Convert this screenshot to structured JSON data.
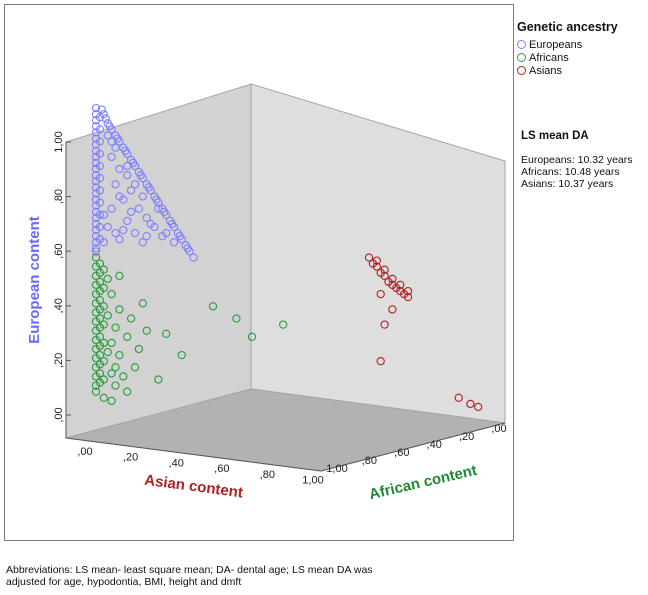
{
  "chart_data": {
    "type": "scatter",
    "subtype": "3d-ternary",
    "axes": {
      "y": {
        "label": "European content",
        "ticks": [
          ",00",
          ",20",
          ",40",
          ",60",
          ",80",
          "1,00"
        ],
        "range": [
          0,
          1
        ],
        "color": "#6a6aff"
      },
      "x": {
        "label": "Asian content",
        "ticks": [
          ",00",
          ",20",
          ",40",
          ",60",
          ",80",
          "1,00"
        ],
        "range": [
          0,
          1
        ],
        "color": "#b02020"
      },
      "z": {
        "label": "African content",
        "ticks": [
          "1,00",
          ",80",
          ",60",
          ",40",
          ",20",
          ",00"
        ],
        "range": [
          0,
          1
        ],
        "color": "#1c8a2e"
      }
    },
    "legend": {
      "title": "Genetic ancestry",
      "placement": "top-right",
      "entries": [
        {
          "name": "Europeans",
          "color": "#7f7fff"
        },
        {
          "name": "Africans",
          "color": "#2b9a3c"
        },
        {
          "name": "Asians",
          "color": "#b02020"
        }
      ]
    },
    "series": [
      {
        "name": "Europeans",
        "points": [
          [
            0.02,
            0.97
          ],
          [
            0.03,
            0.94
          ],
          [
            0.04,
            0.92
          ],
          [
            0.05,
            0.9
          ],
          [
            0.06,
            0.88
          ],
          [
            0.07,
            0.86
          ],
          [
            0.08,
            0.84
          ],
          [
            0.09,
            0.82
          ],
          [
            0.1,
            0.8
          ],
          [
            0.11,
            0.78
          ],
          [
            0.12,
            0.76
          ],
          [
            0.13,
            0.74
          ],
          [
            0.14,
            0.72
          ],
          [
            0.15,
            0.7
          ],
          [
            0.16,
            0.68
          ],
          [
            0.17,
            0.66
          ],
          [
            0.18,
            0.64
          ],
          [
            0.19,
            0.62
          ],
          [
            0.2,
            0.6
          ],
          [
            0.21,
            0.58
          ],
          [
            0.22,
            0.56
          ],
          [
            0.23,
            0.54
          ],
          [
            0.24,
            0.52
          ],
          [
            0.25,
            0.5
          ],
          [
            0.015,
            0.985
          ],
          [
            0.025,
            0.955
          ],
          [
            0.035,
            0.93
          ],
          [
            0.055,
            0.89
          ],
          [
            0.075,
            0.85
          ],
          [
            0.095,
            0.81
          ],
          [
            0.115,
            0.77
          ],
          [
            0.135,
            0.73
          ],
          [
            0.155,
            0.69
          ],
          [
            0.175,
            0.65
          ],
          [
            0.195,
            0.61
          ],
          [
            0.215,
            0.57
          ],
          [
            0.235,
            0.53
          ],
          [
            0.0,
            0.99
          ],
          [
            0.0,
            0.97
          ],
          [
            0.0,
            0.95
          ],
          [
            0.0,
            0.93
          ],
          [
            0.0,
            0.91
          ],
          [
            0.0,
            0.89
          ],
          [
            0.0,
            0.87
          ],
          [
            0.0,
            0.85
          ],
          [
            0.0,
            0.83
          ],
          [
            0.0,
            0.81
          ],
          [
            0.0,
            0.79
          ],
          [
            0.0,
            0.77
          ],
          [
            0.0,
            0.75
          ],
          [
            0.0,
            0.73
          ],
          [
            0.0,
            0.71
          ],
          [
            0.0,
            0.69
          ],
          [
            0.0,
            0.67
          ],
          [
            0.0,
            0.65
          ],
          [
            0.0,
            0.63
          ],
          [
            0.0,
            0.61
          ],
          [
            0.0,
            0.59
          ],
          [
            0.0,
            0.57
          ],
          [
            0.0,
            0.55
          ],
          [
            0.0,
            0.53
          ],
          [
            0.0,
            0.52
          ],
          [
            0.01,
            0.96
          ],
          [
            0.01,
            0.92
          ],
          [
            0.01,
            0.88
          ],
          [
            0.01,
            0.84
          ],
          [
            0.01,
            0.8
          ],
          [
            0.01,
            0.76
          ],
          [
            0.01,
            0.72
          ],
          [
            0.01,
            0.68
          ],
          [
            0.01,
            0.64
          ],
          [
            0.01,
            0.6
          ],
          [
            0.01,
            0.56
          ],
          [
            0.03,
            0.9
          ],
          [
            0.05,
            0.86
          ],
          [
            0.04,
            0.83
          ],
          [
            0.06,
            0.79
          ],
          [
            0.08,
            0.77
          ],
          [
            0.05,
            0.74
          ],
          [
            0.09,
            0.72
          ],
          [
            0.07,
            0.69
          ],
          [
            0.11,
            0.66
          ],
          [
            0.04,
            0.66
          ],
          [
            0.13,
            0.63
          ],
          [
            0.08,
            0.62
          ],
          [
            0.15,
            0.6
          ],
          [
            0.03,
            0.6
          ],
          [
            0.1,
            0.58
          ],
          [
            0.17,
            0.57
          ],
          [
            0.06,
            0.56
          ],
          [
            0.12,
            0.55
          ],
          [
            0.02,
            0.55
          ],
          [
            0.04,
            0.88
          ],
          [
            0.08,
            0.8
          ],
          [
            0.12,
            0.7
          ],
          [
            0.09,
            0.65
          ],
          [
            0.14,
            0.61
          ],
          [
            0.02,
            0.64
          ],
          [
            0.06,
            0.7
          ],
          [
            0.1,
            0.74
          ],
          [
            0.16,
            0.66
          ],
          [
            0.18,
            0.58
          ],
          [
            0.07,
            0.59
          ],
          [
            0.13,
            0.57
          ],
          [
            0.2,
            0.55
          ],
          [
            0.05,
            0.58
          ]
        ]
      },
      {
        "name": "Africans",
        "points": [
          [
            0.0,
            0.5
          ],
          [
            0.0,
            0.47
          ],
          [
            0.0,
            0.44
          ],
          [
            0.0,
            0.41
          ],
          [
            0.0,
            0.38
          ],
          [
            0.0,
            0.35
          ],
          [
            0.0,
            0.32
          ],
          [
            0.0,
            0.29
          ],
          [
            0.0,
            0.26
          ],
          [
            0.0,
            0.23
          ],
          [
            0.0,
            0.2
          ],
          [
            0.0,
            0.17
          ],
          [
            0.0,
            0.14
          ],
          [
            0.0,
            0.11
          ],
          [
            0.0,
            0.08
          ],
          [
            0.0,
            0.06
          ],
          [
            0.01,
            0.48
          ],
          [
            0.01,
            0.45
          ],
          [
            0.01,
            0.42
          ],
          [
            0.01,
            0.39
          ],
          [
            0.01,
            0.36
          ],
          [
            0.01,
            0.33
          ],
          [
            0.01,
            0.3
          ],
          [
            0.01,
            0.27
          ],
          [
            0.01,
            0.24
          ],
          [
            0.01,
            0.21
          ],
          [
            0.01,
            0.18
          ],
          [
            0.01,
            0.15
          ],
          [
            0.01,
            0.12
          ],
          [
            0.01,
            0.09
          ],
          [
            0.02,
            0.46
          ],
          [
            0.02,
            0.4
          ],
          [
            0.02,
            0.34
          ],
          [
            0.02,
            0.28
          ],
          [
            0.02,
            0.22
          ],
          [
            0.02,
            0.16
          ],
          [
            0.02,
            0.1
          ],
          [
            0.03,
            0.43
          ],
          [
            0.04,
            0.38
          ],
          [
            0.03,
            0.31
          ],
          [
            0.05,
            0.27
          ],
          [
            0.04,
            0.22
          ],
          [
            0.06,
            0.18
          ],
          [
            0.05,
            0.14
          ],
          [
            0.07,
            0.11
          ],
          [
            0.03,
            0.19
          ],
          [
            0.06,
            0.33
          ],
          [
            0.08,
            0.24
          ],
          [
            0.04,
            0.12
          ],
          [
            0.06,
            0.44
          ],
          [
            0.09,
            0.3
          ],
          [
            0.11,
            0.2
          ],
          [
            0.13,
            0.26
          ],
          [
            0.1,
            0.14
          ],
          [
            0.05,
            0.08
          ],
          [
            0.02,
            0.04
          ],
          [
            0.12,
            0.35
          ],
          [
            0.18,
            0.25
          ],
          [
            0.22,
            0.18
          ],
          [
            0.3,
            0.34
          ],
          [
            0.36,
            0.3
          ],
          [
            0.4,
            0.24
          ],
          [
            0.48,
            0.28
          ],
          [
            0.16,
            0.1
          ],
          [
            0.08,
            0.06
          ],
          [
            0.04,
            0.03
          ]
        ]
      },
      {
        "name": "Asians",
        "points": [
          [
            0.7,
            0.5
          ],
          [
            0.71,
            0.48
          ],
          [
            0.72,
            0.47
          ],
          [
            0.73,
            0.45
          ],
          [
            0.74,
            0.44
          ],
          [
            0.75,
            0.42
          ],
          [
            0.76,
            0.41
          ],
          [
            0.77,
            0.4
          ],
          [
            0.78,
            0.39
          ],
          [
            0.79,
            0.38
          ],
          [
            0.8,
            0.37
          ],
          [
            0.72,
            0.49
          ],
          [
            0.74,
            0.46
          ],
          [
            0.76,
            0.43
          ],
          [
            0.78,
            0.41
          ],
          [
            0.8,
            0.39
          ],
          [
            0.73,
            0.38
          ],
          [
            0.76,
            0.33
          ],
          [
            0.74,
            0.28
          ],
          [
            0.73,
            0.16
          ],
          [
            0.93,
            0.04
          ],
          [
            0.96,
            0.02
          ],
          [
            0.98,
            0.01
          ]
        ]
      }
    ]
  },
  "ls_mean": {
    "title": "LS mean DA",
    "lines": [
      "Europeans: 10.32 years",
      "Africans: 10.48 years",
      "Asians: 10.37 years"
    ]
  },
  "footnote": [
    "Abbreviations: LS mean- least square mean; DA- dental age; LS mean DA was",
    "adjusted for age, hypodontia, BMI, height and dmft"
  ]
}
